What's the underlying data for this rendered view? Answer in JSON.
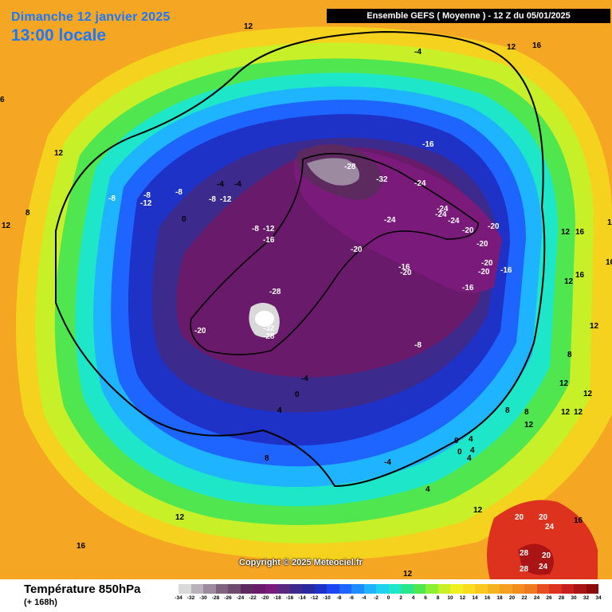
{
  "header": {
    "date": "Dimanche 12 janvier 2025",
    "time": "13:00 locale",
    "run": "Ensemble GEFS  ( Moyenne )  -  12 Z du 05/01/2025"
  },
  "copyright": "Copyright © 2025 Meteociel.fr",
  "footer": {
    "title": "Température 850hPa",
    "subtitle": "(+ 168h)"
  },
  "legend": {
    "ticks": [
      "-34",
      "-32",
      "-30",
      "-28",
      "-26",
      "-24",
      "-22",
      "-20",
      "-18",
      "-16",
      "-14",
      "-12",
      "-10",
      "-8",
      "-6",
      "-4",
      "-2",
      "0",
      "2",
      "4",
      "6",
      "8",
      "10",
      "12",
      "14",
      "16",
      "18",
      "20",
      "22",
      "24",
      "26",
      "28",
      "30",
      "32",
      "34"
    ],
    "colors": [
      "#d9d9d9",
      "#b9b2ba",
      "#9c8aa0",
      "#80627f",
      "#6e4a6e",
      "#5d2a60",
      "#6a1a6a",
      "#7a1a7a",
      "#5a2880",
      "#3c2a8c",
      "#2a2aa0",
      "#1e32c8",
      "#1e46f0",
      "#1e64ff",
      "#1e8cff",
      "#1eb4ff",
      "#1ed2f0",
      "#1ee6c8",
      "#28e68c",
      "#50e650",
      "#8cf032",
      "#c8f028",
      "#f0f01e",
      "#fadc1e",
      "#fac81e",
      "#f5b41e",
      "#f5a01e",
      "#f58c1e",
      "#f0781e",
      "#e6501e",
      "#dc321e",
      "#c81e1e",
      "#aa1414",
      "#8c0a0a"
    ]
  },
  "map_labels": [
    {
      "t": "12"
    },
    {
      "t": "-4"
    },
    {
      "t": "12"
    },
    {
      "t": "16"
    },
    {
      "t": "6"
    },
    {
      "t": "12"
    },
    {
      "t": "-16"
    },
    {
      "t": "-28"
    },
    {
      "t": "-32"
    },
    {
      "t": "-24"
    },
    {
      "t": "-8"
    },
    {
      "t": "-8"
    },
    {
      "t": "-12"
    },
    {
      "t": "-8"
    },
    {
      "t": "-4"
    },
    {
      "t": "-4"
    },
    {
      "t": "-8"
    },
    {
      "t": "-12"
    },
    {
      "t": "0"
    },
    {
      "t": "8"
    },
    {
      "t": "12"
    },
    {
      "t": "-8"
    },
    {
      "t": "-12"
    },
    {
      "t": "-16"
    },
    {
      "t": "-24"
    },
    {
      "t": "-24"
    },
    {
      "t": "-24"
    },
    {
      "t": "-24"
    },
    {
      "t": "-20"
    },
    {
      "t": "-20"
    },
    {
      "t": "-20"
    },
    {
      "t": "-20"
    },
    {
      "t": "-16"
    },
    {
      "t": "-20"
    },
    {
      "t": "-16"
    },
    {
      "t": "-20"
    },
    {
      "t": "-20"
    },
    {
      "t": "-16"
    },
    {
      "t": "-28"
    },
    {
      "t": "-20"
    },
    {
      "t": "-32"
    },
    {
      "t": "-28"
    },
    {
      "t": "-8"
    },
    {
      "t": "-4"
    },
    {
      "t": "0"
    },
    {
      "t": "4"
    },
    {
      "t": "8"
    },
    {
      "t": "12"
    },
    {
      "t": "16"
    },
    {
      "t": "12"
    },
    {
      "t": "16"
    },
    {
      "t": "12"
    },
    {
      "t": "16"
    },
    {
      "t": "8"
    },
    {
      "t": "12"
    },
    {
      "t": "12"
    },
    {
      "t": "8"
    },
    {
      "t": "12"
    },
    {
      "t": "8"
    },
    {
      "t": "12"
    },
    {
      "t": "12"
    },
    {
      "t": "0"
    },
    {
      "t": "4"
    },
    {
      "t": "4"
    },
    {
      "t": "0"
    },
    {
      "t": "4"
    },
    {
      "t": "-4"
    },
    {
      "t": "4"
    },
    {
      "t": "12"
    },
    {
      "t": "12"
    },
    {
      "t": "20"
    },
    {
      "t": "20"
    },
    {
      "t": "24"
    },
    {
      "t": "16"
    },
    {
      "t": "28"
    },
    {
      "t": "20"
    },
    {
      "t": "28"
    },
    {
      "t": "24"
    },
    {
      "t": "16"
    },
    {
      "t": "12"
    },
    {
      "t": "12"
    }
  ]
}
